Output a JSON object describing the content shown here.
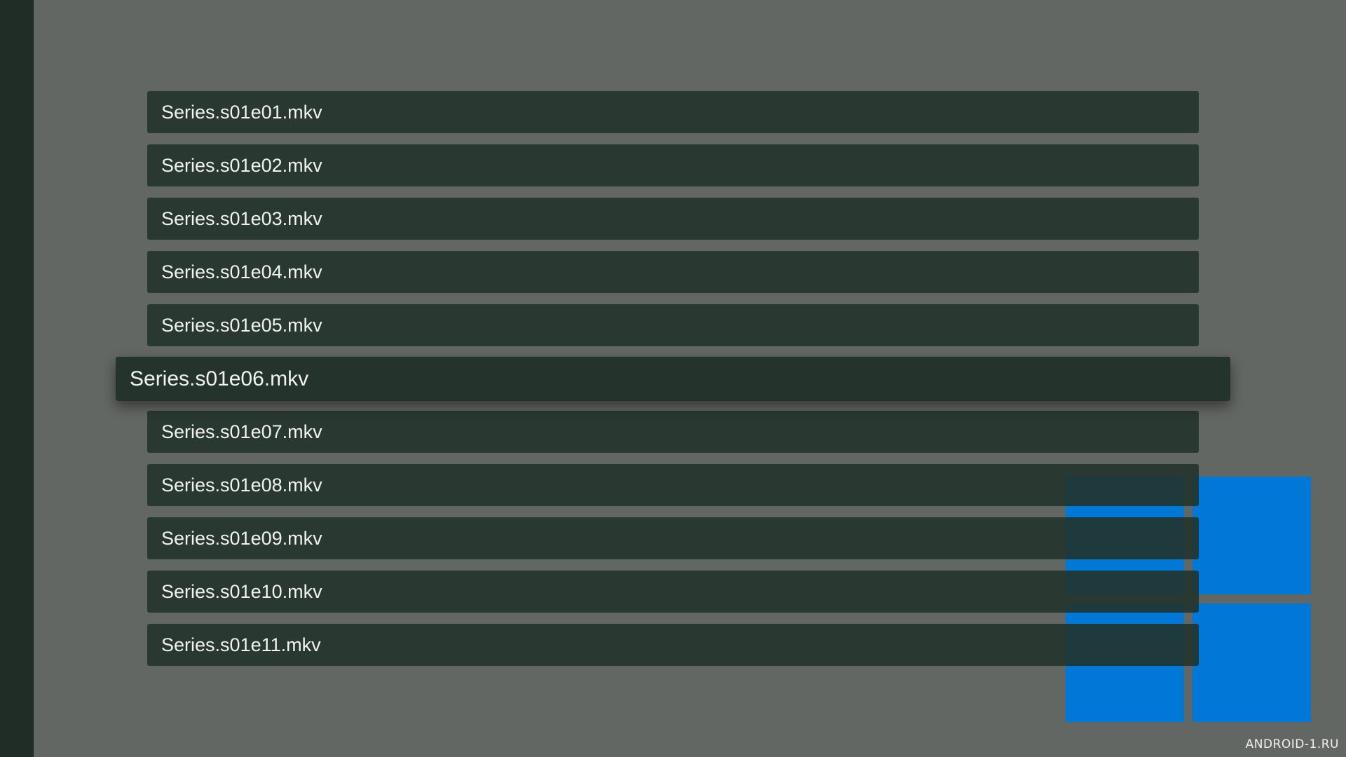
{
  "files": [
    {
      "name": "Series.s01e01.mkv",
      "selected": false
    },
    {
      "name": "Series.s01e02.mkv",
      "selected": false
    },
    {
      "name": "Series.s01e03.mkv",
      "selected": false
    },
    {
      "name": "Series.s01e04.mkv",
      "selected": false
    },
    {
      "name": "Series.s01e05.mkv",
      "selected": false
    },
    {
      "name": "Series.s01e06.mkv",
      "selected": true
    },
    {
      "name": "Series.s01e07.mkv",
      "selected": false
    },
    {
      "name": "Series.s01e08.mkv",
      "selected": false
    },
    {
      "name": "Series.s01e09.mkv",
      "selected": false
    },
    {
      "name": "Series.s01e10.mkv",
      "selected": false
    },
    {
      "name": "Series.s01e11.mkv",
      "selected": false
    }
  ],
  "watermark": "ANDROID-1.RU",
  "colors": {
    "background": "#636763",
    "row": "#22332b",
    "sidebar": "#1f2d26",
    "logo": "#0078d7"
  },
  "logo_icon": "windows-logo-icon"
}
